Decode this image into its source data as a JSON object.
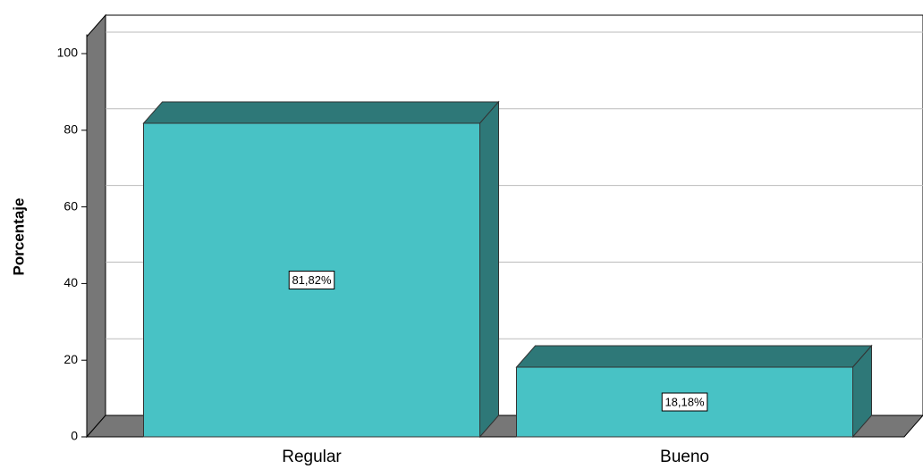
{
  "chart_data": {
    "type": "bar",
    "y_label": "Porcentaje",
    "categories": [
      "Regular",
      "Bueno"
    ],
    "values": [
      81.82,
      18.18
    ],
    "value_labels": [
      "81,82%",
      "18,18%"
    ],
    "color": "#48c2c5",
    "ylim": [
      0,
      105
    ],
    "yticks": [
      0,
      20,
      40,
      60,
      80,
      100
    ],
    "grid": true
  }
}
